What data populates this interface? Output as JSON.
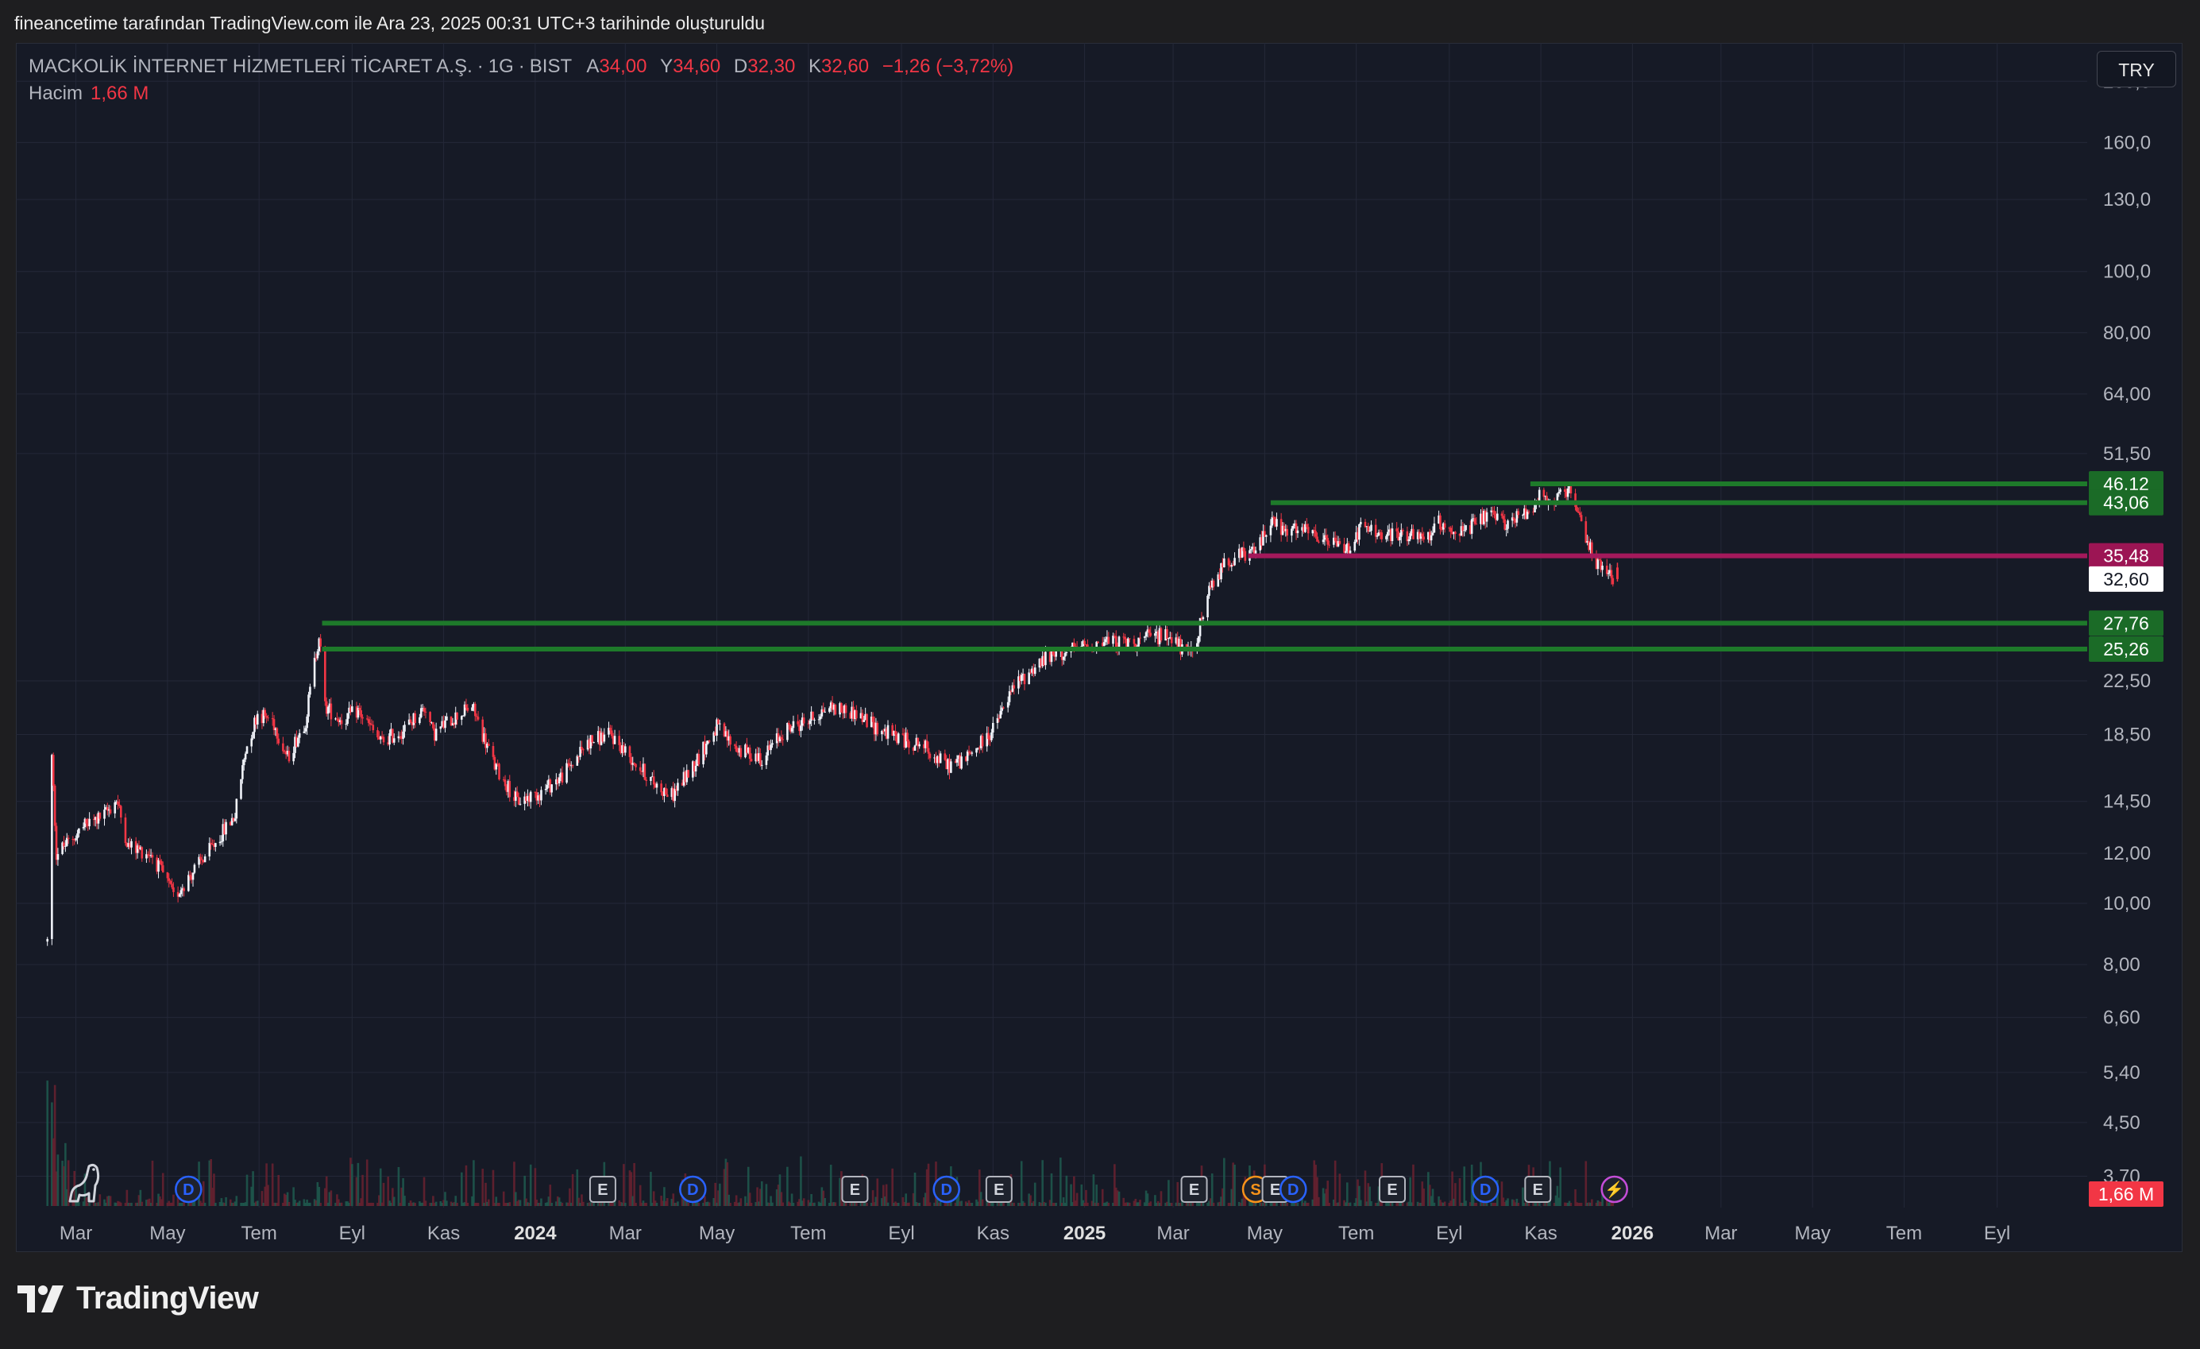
{
  "header": {
    "credit": "fineancetime tarafından TradingView.com ile Ara 23, 2025 00:31 UTC+3 tarihinde oluşturuldu"
  },
  "legend": {
    "symbol": "MACKOLİK İNTERNET HİZMETLERİ TİCARET A.Ş.",
    "interval": "1G",
    "exchange": "BIST",
    "open_label": "A",
    "open": "34,00",
    "high_label": "Y",
    "high": "34,60",
    "low_label": "D",
    "low": "32,30",
    "close_label": "K",
    "close": "32,60",
    "change": "−1,26 (−3,72%)",
    "volume_label": "Hacim",
    "volume": "1,66 M"
  },
  "currency_button": "TRY",
  "brand": "TradingView",
  "colors": {
    "background": "#161a26",
    "up": "#f0f3fa",
    "down": "#f23645",
    "support_line": "#1e7a2a",
    "resistance_line": "#a3195b",
    "last_price": "#ffffff"
  },
  "chart_data": {
    "type": "candlestick",
    "y_scale": "log",
    "ylim": [
      3.3,
      230
    ],
    "y_ticks": [
      "3,70",
      "4,50",
      "5,40",
      "6,60",
      "8,00",
      "10,00",
      "12,00",
      "14,50",
      "18,50",
      "22,50",
      "51,50",
      "64,00",
      "80,00",
      "100,0",
      "130,0",
      "160,0",
      "200,0"
    ],
    "x_range": [
      "2023-01-20",
      "2026-10-31"
    ],
    "x_ticks": [
      {
        "label": "Mar",
        "date": "2023-03-01",
        "year": false
      },
      {
        "label": "May",
        "date": "2023-05-01",
        "year": false
      },
      {
        "label": "Tem",
        "date": "2023-07-01",
        "year": false
      },
      {
        "label": "Eyl",
        "date": "2023-09-01",
        "year": false
      },
      {
        "label": "Kas",
        "date": "2023-11-01",
        "year": false
      },
      {
        "label": "2024",
        "date": "2024-01-01",
        "year": true
      },
      {
        "label": "Mar",
        "date": "2024-03-01",
        "year": false
      },
      {
        "label": "May",
        "date": "2024-05-01",
        "year": false
      },
      {
        "label": "Tem",
        "date": "2024-07-01",
        "year": false
      },
      {
        "label": "Eyl",
        "date": "2024-09-01",
        "year": false
      },
      {
        "label": "Kas",
        "date": "2024-11-01",
        "year": false
      },
      {
        "label": "2025",
        "date": "2025-01-01",
        "year": true
      },
      {
        "label": "Mar",
        "date": "2025-03-01",
        "year": false
      },
      {
        "label": "May",
        "date": "2025-05-01",
        "year": false
      },
      {
        "label": "Tem",
        "date": "2025-07-01",
        "year": false
      },
      {
        "label": "Eyl",
        "date": "2025-09-01",
        "year": false
      },
      {
        "label": "Kas",
        "date": "2025-11-01",
        "year": false
      },
      {
        "label": "2026",
        "date": "2026-01-01",
        "year": true
      },
      {
        "label": "Mar",
        "date": "2026-03-01",
        "year": false
      },
      {
        "label": "May",
        "date": "2026-05-01",
        "year": false
      },
      {
        "label": "Tem",
        "date": "2026-07-01",
        "year": false
      },
      {
        "label": "Eyl",
        "date": "2026-09-01",
        "year": false
      }
    ],
    "price_path": [
      [
        "2023-02-10",
        8.7
      ],
      [
        "2023-02-13",
        17.0
      ],
      [
        "2023-02-16",
        12.0
      ],
      [
        "2023-02-24",
        12.5
      ],
      [
        "2023-03-06",
        13.2
      ],
      [
        "2023-03-20",
        13.8
      ],
      [
        "2023-03-28",
        14.6
      ],
      [
        "2023-04-05",
        12.3
      ],
      [
        "2023-04-20",
        12.0
      ],
      [
        "2023-05-01",
        10.8
      ],
      [
        "2023-05-05",
        10.2
      ],
      [
        "2023-05-15",
        11.0
      ],
      [
        "2023-05-30",
        12.2
      ],
      [
        "2023-06-15",
        13.8
      ],
      [
        "2023-06-22",
        17.5
      ],
      [
        "2023-06-30",
        20.0
      ],
      [
        "2023-07-10",
        19.5
      ],
      [
        "2023-07-20",
        17.0
      ],
      [
        "2023-08-01",
        19.5
      ],
      [
        "2023-08-10",
        26.7
      ],
      [
        "2023-08-14",
        20.5
      ],
      [
        "2023-08-25",
        19.5
      ],
      [
        "2023-09-05",
        20.2
      ],
      [
        "2023-09-20",
        18.0
      ],
      [
        "2023-10-05",
        18.8
      ],
      [
        "2023-10-20",
        20.5
      ],
      [
        "2023-10-25",
        18.5
      ],
      [
        "2023-11-05",
        19.5
      ],
      [
        "2023-11-20",
        20.5
      ],
      [
        "2023-12-05",
        16.5
      ],
      [
        "2023-12-20",
        14.5
      ],
      [
        "2024-01-05",
        15.0
      ],
      [
        "2024-01-20",
        16.0
      ],
      [
        "2024-02-05",
        18.0
      ],
      [
        "2024-02-20",
        18.5
      ],
      [
        "2024-03-05",
        17.0
      ],
      [
        "2024-03-20",
        15.5
      ],
      [
        "2024-04-01",
        14.8
      ],
      [
        "2024-04-15",
        16.5
      ],
      [
        "2024-05-01",
        19.0
      ],
      [
        "2024-05-15",
        17.5
      ],
      [
        "2024-06-01",
        17.0
      ],
      [
        "2024-06-15",
        18.8
      ],
      [
        "2024-07-01",
        19.5
      ],
      [
        "2024-07-15",
        20.5
      ],
      [
        "2024-08-01",
        20.0
      ],
      [
        "2024-08-15",
        19.0
      ],
      [
        "2024-09-01",
        18.2
      ],
      [
        "2024-09-15",
        17.8
      ],
      [
        "2024-10-01",
        16.5
      ],
      [
        "2024-10-15",
        17.0
      ],
      [
        "2024-11-01",
        18.8
      ],
      [
        "2024-11-15",
        22.0
      ],
      [
        "2024-12-01",
        24.0
      ],
      [
        "2024-12-15",
        24.8
      ],
      [
        "2025-01-01",
        25.5
      ],
      [
        "2025-01-15",
        26.0
      ],
      [
        "2025-02-01",
        25.8
      ],
      [
        "2025-02-15",
        26.5
      ],
      [
        "2025-03-01",
        26.5
      ],
      [
        "2025-03-10",
        24.5
      ],
      [
        "2025-03-15",
        25.5
      ],
      [
        "2025-03-25",
        31.0
      ],
      [
        "2025-04-05",
        35.0
      ],
      [
        "2025-04-15",
        35.5
      ],
      [
        "2025-04-25",
        36.0
      ],
      [
        "2025-05-05",
        40.5
      ],
      [
        "2025-05-15",
        38.5
      ],
      [
        "2025-05-25",
        39.0
      ],
      [
        "2025-06-10",
        37.5
      ],
      [
        "2025-06-25",
        36.5
      ],
      [
        "2025-07-05",
        39.5
      ],
      [
        "2025-07-20",
        38.0
      ],
      [
        "2025-08-01",
        38.5
      ],
      [
        "2025-08-15",
        37.5
      ],
      [
        "2025-08-25",
        40.0
      ],
      [
        "2025-09-10",
        38.5
      ],
      [
        "2025-09-25",
        41.0
      ],
      [
        "2025-10-10",
        40.0
      ],
      [
        "2025-10-25",
        42.0
      ],
      [
        "2025-11-01",
        45.0
      ],
      [
        "2025-11-05",
        43.0
      ],
      [
        "2025-11-20",
        44.5
      ],
      [
        "2025-12-01",
        38.0
      ],
      [
        "2025-12-10",
        34.0
      ],
      [
        "2025-12-22",
        32.6
      ]
    ],
    "levels": [
      {
        "value": 46.12,
        "label": "46,12",
        "kind": "support",
        "start": "2025-10-25"
      },
      {
        "value": 43.06,
        "label": "43,06",
        "kind": "support",
        "start": "2025-05-05"
      },
      {
        "value": 35.48,
        "label": "35,48",
        "kind": "resistance",
        "start": "2025-04-20"
      },
      {
        "value": 27.76,
        "label": "27,76",
        "kind": "support",
        "start": "2023-08-12"
      },
      {
        "value": 25.26,
        "label": "25,26",
        "kind": "support",
        "start": "2023-08-12"
      }
    ],
    "last_price": {
      "value": 32.6,
      "label": "32,60"
    },
    "volume_badge": "1,66 M",
    "events": [
      {
        "type": "D",
        "date": "2023-05-15",
        "color": "#2962ff"
      },
      {
        "type": "E",
        "date": "2024-02-15",
        "color": "#b2b5be"
      },
      {
        "type": "D",
        "date": "2024-04-15",
        "color": "#2962ff"
      },
      {
        "type": "E",
        "date": "2024-08-01",
        "color": "#b2b5be"
      },
      {
        "type": "D",
        "date": "2024-10-01",
        "color": "#2962ff"
      },
      {
        "type": "E",
        "date": "2024-11-05",
        "color": "#b2b5be"
      },
      {
        "type": "E",
        "date": "2025-03-15",
        "color": "#b2b5be"
      },
      {
        "type": "S",
        "date": "2025-04-25",
        "color": "#f7931a"
      },
      {
        "type": "E",
        "date": "2025-05-08",
        "color": "#b2b5be"
      },
      {
        "type": "D",
        "date": "2025-05-20",
        "color": "#2962ff"
      },
      {
        "type": "E",
        "date": "2025-07-25",
        "color": "#b2b5be"
      },
      {
        "type": "D",
        "date": "2025-09-25",
        "color": "#2962ff"
      },
      {
        "type": "E",
        "date": "2025-10-30",
        "color": "#b2b5be"
      },
      {
        "type": "⚡",
        "date": "2025-12-20",
        "color": "#c44dd8"
      }
    ]
  }
}
